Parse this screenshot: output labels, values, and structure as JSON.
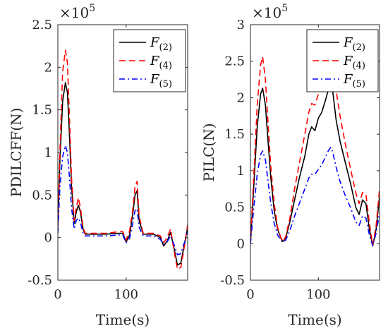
{
  "chart_data": [
    {
      "type": "line",
      "ylabel": "PDILCFF(N)",
      "xlabel": "Time(s)",
      "exponent_label": "×10",
      "exponent_power": "5",
      "xlim": [
        0,
        190
      ],
      "ylim": [
        -0.5,
        2.5
      ],
      "xticks": [
        0,
        100
      ],
      "xtick_labels": [
        "0",
        "100"
      ],
      "yticks": [
        -0.5,
        0,
        0.5,
        1,
        1.5,
        2,
        2.5
      ],
      "ytick_labels": [
        "-0.5",
        "0",
        "0.5",
        "1",
        "1.5",
        "2",
        "2.5"
      ],
      "legend": "top-right",
      "series": [
        {
          "name": "F",
          "subscript": "(2)",
          "color": "#000000",
          "dash": "solid",
          "x": [
            0,
            3,
            7,
            11,
            14,
            17,
            20,
            24,
            27,
            30,
            33,
            37,
            40,
            50,
            70,
            90,
            95,
            100,
            105,
            110,
            113,
            116,
            119,
            125,
            140,
            150,
            155,
            160,
            165,
            170,
            175,
            180,
            186,
            190
          ],
          "y": [
            0.1,
            0.9,
            1.6,
            1.82,
            1.7,
            1.2,
            0.6,
            0.17,
            0.3,
            0.38,
            0.3,
            0.1,
            0.04,
            0.04,
            0.04,
            0.05,
            0.05,
            -0.05,
            0.03,
            0.3,
            0.5,
            0.55,
            0.2,
            0.04,
            0.04,
            0.0,
            -0.1,
            -0.04,
            0.06,
            -0.12,
            -0.32,
            -0.3,
            -0.05,
            0.12
          ]
        },
        {
          "name": "F",
          "subscript": "(4)",
          "color": "#ff0000",
          "dash": "dashed",
          "x": [
            0,
            3,
            7,
            11,
            14,
            17,
            20,
            24,
            27,
            30,
            33,
            37,
            40,
            50,
            70,
            90,
            95,
            100,
            105,
            110,
            113,
            116,
            119,
            125,
            140,
            150,
            155,
            160,
            165,
            170,
            175,
            180,
            186,
            190
          ],
          "y": [
            0.1,
            1.0,
            1.95,
            2.2,
            2.05,
            1.4,
            0.7,
            0.2,
            0.35,
            0.47,
            0.35,
            0.12,
            0.05,
            0.05,
            0.05,
            0.07,
            0.07,
            -0.03,
            0.08,
            0.35,
            0.6,
            0.66,
            0.25,
            0.05,
            0.05,
            0.02,
            -0.06,
            0.0,
            0.1,
            -0.15,
            -0.37,
            -0.35,
            -0.07,
            0.15
          ]
        },
        {
          "name": "F",
          "subscript": "(5)",
          "color": "#0000ff",
          "dash": "dashdot",
          "x": [
            0,
            3,
            7,
            11,
            14,
            17,
            20,
            24,
            27,
            30,
            33,
            37,
            40,
            50,
            70,
            90,
            95,
            100,
            105,
            110,
            113,
            116,
            119,
            125,
            140,
            150,
            155,
            160,
            165,
            170,
            175,
            180,
            186,
            190
          ],
          "y": [
            0.05,
            0.6,
            0.95,
            1.08,
            1.0,
            0.7,
            0.35,
            0.1,
            0.2,
            0.23,
            0.18,
            0.05,
            0.02,
            0.02,
            0.02,
            0.03,
            0.03,
            -0.06,
            -0.01,
            0.18,
            0.32,
            0.34,
            0.12,
            0.02,
            0.02,
            -0.02,
            -0.08,
            -0.05,
            0.02,
            -0.08,
            -0.2,
            -0.19,
            -0.04,
            0.07
          ]
        }
      ]
    },
    {
      "type": "line",
      "ylabel": "PILC(N)",
      "xlabel": "Time(s)",
      "exponent_label": "×10",
      "exponent_power": "5",
      "xlim": [
        0,
        190
      ],
      "ylim": [
        -0.5,
        3
      ],
      "xticks": [
        0,
        100
      ],
      "xtick_labels": [
        "0",
        "100"
      ],
      "yticks": [
        -0.5,
        0,
        0.5,
        1,
        1.5,
        2,
        2.5,
        3
      ],
      "ytick_labels": [
        "-0.5",
        "0",
        "0.5",
        "1",
        "1.5",
        "2",
        "2.5",
        "3"
      ],
      "legend": "top-right",
      "series": [
        {
          "name": "F",
          "subscript": "(2)",
          "color": "#000000",
          "dash": "solid",
          "x": [
            0,
            5,
            10,
            15,
            18,
            22,
            26,
            30,
            35,
            40,
            45,
            48,
            52,
            58,
            65,
            72,
            80,
            86,
            90,
            95,
            100,
            105,
            110,
            115,
            118,
            121,
            126,
            132,
            140,
            148,
            155,
            160,
            165,
            170,
            175,
            180,
            185,
            190
          ],
          "y": [
            0.0,
            0.8,
            1.6,
            2.05,
            2.13,
            1.9,
            1.4,
            0.9,
            0.45,
            0.2,
            0.07,
            0.03,
            0.08,
            0.3,
            0.6,
            0.9,
            1.2,
            1.5,
            1.6,
            1.55,
            1.72,
            1.8,
            1.95,
            2.12,
            2.22,
            2.1,
            1.7,
            1.4,
            1.1,
            0.8,
            0.5,
            0.4,
            0.6,
            0.55,
            0.2,
            -0.03,
            0.2,
            0.65
          ]
        },
        {
          "name": "F",
          "subscript": "(4)",
          "color": "#ff0000",
          "dash": "dashed",
          "x": [
            0,
            5,
            10,
            15,
            18,
            22,
            26,
            30,
            35,
            40,
            45,
            48,
            52,
            58,
            65,
            72,
            80,
            86,
            90,
            95,
            100,
            105,
            110,
            115,
            118,
            121,
            126,
            132,
            140,
            148,
            155,
            160,
            165,
            170,
            175,
            180,
            185,
            190
          ],
          "y": [
            0.0,
            0.95,
            1.9,
            2.45,
            2.56,
            2.25,
            1.65,
            1.05,
            0.55,
            0.22,
            0.08,
            0.03,
            0.1,
            0.35,
            0.75,
            1.1,
            1.5,
            1.8,
            1.92,
            1.9,
            2.05,
            2.2,
            2.35,
            2.55,
            2.6,
            2.5,
            2.1,
            1.75,
            1.35,
            1.0,
            0.7,
            0.55,
            0.7,
            0.68,
            0.28,
            -0.02,
            0.25,
            0.75
          ]
        },
        {
          "name": "F",
          "subscript": "(5)",
          "color": "#0000ff",
          "dash": "dashdot",
          "x": [
            0,
            5,
            10,
            15,
            18,
            22,
            26,
            30,
            35,
            40,
            45,
            48,
            52,
            58,
            65,
            72,
            80,
            86,
            90,
            95,
            100,
            105,
            110,
            115,
            118,
            121,
            126,
            132,
            140,
            148,
            155,
            160,
            165,
            170,
            175,
            180,
            185,
            190
          ],
          "y": [
            0.0,
            0.5,
            0.95,
            1.22,
            1.27,
            1.15,
            0.85,
            0.55,
            0.28,
            0.12,
            0.04,
            0.02,
            0.05,
            0.18,
            0.38,
            0.55,
            0.75,
            0.9,
            0.95,
            0.95,
            1.02,
            1.08,
            1.18,
            1.28,
            1.32,
            1.26,
            1.05,
            0.85,
            0.65,
            0.48,
            0.3,
            0.25,
            0.38,
            0.35,
            0.12,
            -0.03,
            0.15,
            0.42
          ]
        }
      ]
    }
  ]
}
